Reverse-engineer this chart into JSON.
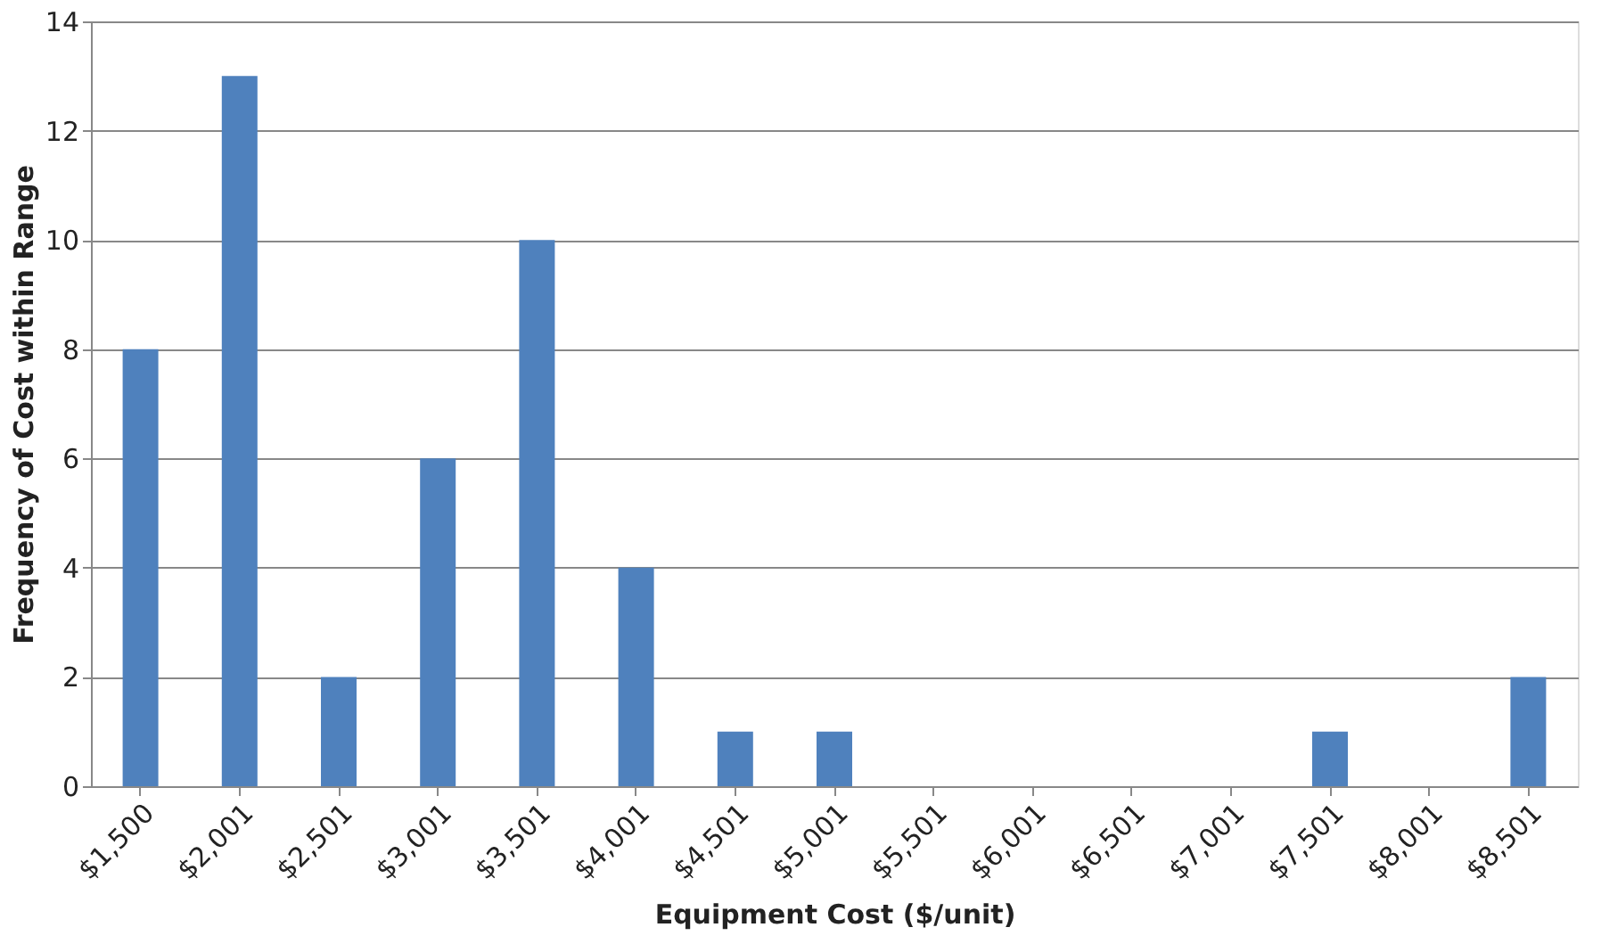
{
  "chart_data": {
    "type": "bar",
    "xlabel": "Equipment Cost ($/unit)",
    "ylabel": "Frequency of Cost within Range",
    "categories": [
      "$1,500",
      "$2,001",
      "$2,501",
      "$3,001",
      "$3,501",
      "$4,001",
      "$4,501",
      "$5,001",
      "$5,501",
      "$6,001",
      "$6,501",
      "$7,001",
      "$7,501",
      "$8,001",
      "$8,501"
    ],
    "values": [
      8,
      13,
      2,
      6,
      10,
      4,
      1,
      1,
      0,
      0,
      0,
      0,
      1,
      0,
      2
    ],
    "color": "#4f81bd",
    "ylim": [
      0,
      14
    ],
    "yticks": [
      0,
      2,
      4,
      6,
      8,
      10,
      12,
      14
    ],
    "grid": "y"
  }
}
